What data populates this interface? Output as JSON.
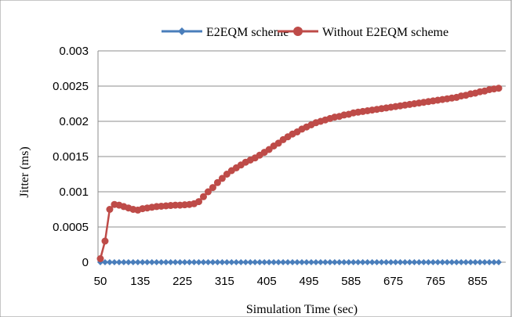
{
  "chart_data": {
    "type": "line",
    "title": "",
    "xlabel": "Simulation Time (sec)",
    "ylabel": "Jitter (ms)",
    "ylim": [
      0,
      0.003
    ],
    "xlim": [
      45,
      915
    ],
    "x_ticks": [
      50,
      135,
      225,
      315,
      405,
      495,
      585,
      675,
      765,
      855
    ],
    "y_ticks": [
      0,
      0.0005,
      0.001,
      0.0015,
      0.002,
      0.0025,
      0.003
    ],
    "y_tick_labels": [
      "0",
      "0.0005",
      "0.001",
      "0.0015",
      "0.002",
      "0.0025",
      "0.003"
    ],
    "grid": "horizontal",
    "legend_position": "top",
    "colors": {
      "e2eqm": "#4a7ebb",
      "without": "#be4b48"
    },
    "series": [
      {
        "name": "E2EQM scheme",
        "marker": "diamond",
        "x": [
          50,
          60,
          70,
          80,
          90,
          100,
          110,
          120,
          130,
          140,
          150,
          160,
          170,
          180,
          190,
          200,
          210,
          220,
          230,
          240,
          250,
          260,
          270,
          280,
          290,
          300,
          310,
          320,
          330,
          340,
          350,
          360,
          370,
          380,
          390,
          400,
          410,
          420,
          430,
          440,
          450,
          460,
          470,
          480,
          490,
          500,
          510,
          520,
          530,
          540,
          550,
          560,
          570,
          580,
          590,
          600,
          610,
          620,
          630,
          640,
          650,
          660,
          670,
          680,
          690,
          700,
          710,
          720,
          730,
          740,
          750,
          760,
          770,
          780,
          790,
          800,
          810,
          820,
          830,
          840,
          850,
          860,
          870,
          880,
          890,
          900
        ],
        "values": [
          0,
          0,
          0,
          0,
          0,
          0,
          0,
          0,
          0,
          0,
          0,
          0,
          0,
          0,
          0,
          0,
          0,
          0,
          0,
          0,
          0,
          0,
          0,
          0,
          0,
          0,
          0,
          0,
          0,
          0,
          0,
          0,
          0,
          0,
          0,
          0,
          0,
          0,
          0,
          0,
          0,
          0,
          0,
          0,
          0,
          0,
          0,
          0,
          0,
          0,
          0,
          0,
          0,
          0,
          0,
          0,
          0,
          0,
          0,
          0,
          0,
          0,
          0,
          0,
          0,
          0,
          0,
          0,
          0,
          0,
          0,
          0,
          0,
          0,
          0,
          0,
          0,
          0,
          0,
          0,
          0,
          0,
          0,
          0,
          0,
          0
        ]
      },
      {
        "name": "Without E2EQM scheme",
        "marker": "circle",
        "x": [
          50,
          60,
          70,
          80,
          90,
          100,
          110,
          120,
          130,
          140,
          150,
          160,
          170,
          180,
          190,
          200,
          210,
          220,
          230,
          240,
          250,
          260,
          270,
          280,
          290,
          300,
          310,
          320,
          330,
          340,
          350,
          360,
          370,
          380,
          390,
          400,
          410,
          420,
          430,
          440,
          450,
          460,
          470,
          480,
          490,
          500,
          510,
          520,
          530,
          540,
          550,
          560,
          570,
          580,
          590,
          600,
          610,
          620,
          630,
          640,
          650,
          660,
          670,
          680,
          690,
          700,
          710,
          720,
          730,
          740,
          750,
          760,
          770,
          780,
          790,
          800,
          810,
          820,
          830,
          840,
          850,
          860,
          870,
          880,
          890,
          900
        ],
        "values": [
          5e-05,
          0.0003,
          0.00075,
          0.00082,
          0.00081,
          0.00079,
          0.00077,
          0.00075,
          0.00074,
          0.00076,
          0.00077,
          0.00078,
          0.00079,
          0.000795,
          0.0008,
          0.000805,
          0.00081,
          0.00081,
          0.000815,
          0.00082,
          0.00083,
          0.00086,
          0.00093,
          0.001,
          0.00106,
          0.00113,
          0.00119,
          0.00125,
          0.0013,
          0.00134,
          0.00138,
          0.00142,
          0.00145,
          0.00148,
          0.00152,
          0.00156,
          0.0016,
          0.00165,
          0.00169,
          0.00174,
          0.00178,
          0.00182,
          0.00185,
          0.00189,
          0.00192,
          0.00195,
          0.00198,
          0.002,
          0.00202,
          0.00204,
          0.00206,
          0.00207,
          0.00209,
          0.0021,
          0.00212,
          0.00213,
          0.00214,
          0.00215,
          0.00216,
          0.00217,
          0.00218,
          0.00219,
          0.0022,
          0.00221,
          0.00222,
          0.00223,
          0.00224,
          0.00225,
          0.00226,
          0.00227,
          0.00228,
          0.00229,
          0.0023,
          0.00231,
          0.00232,
          0.00233,
          0.00234,
          0.00236,
          0.00237,
          0.00239,
          0.0024,
          0.00242,
          0.00243,
          0.00245,
          0.00246,
          0.00247
        ]
      }
    ]
  }
}
